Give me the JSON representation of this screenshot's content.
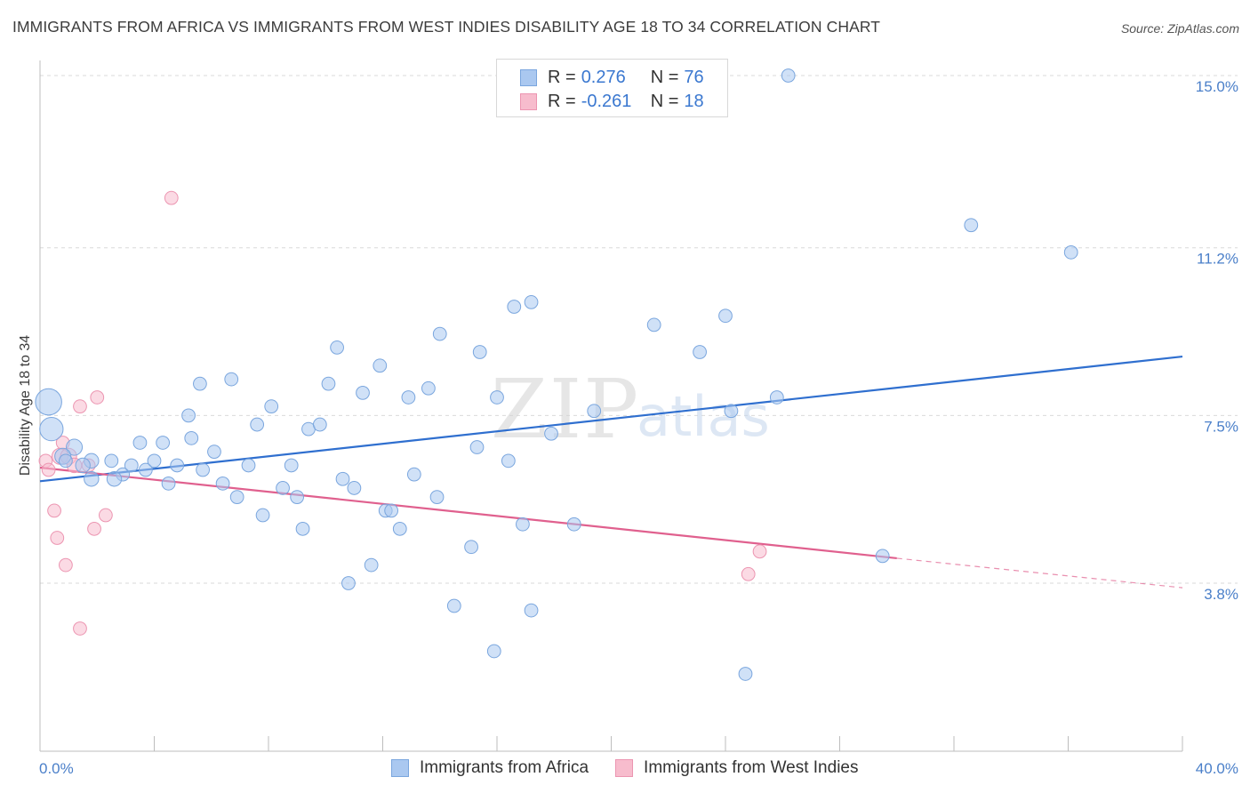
{
  "title": "IMMIGRANTS FROM AFRICA VS IMMIGRANTS FROM WEST INDIES DISABILITY AGE 18 TO 34 CORRELATION CHART",
  "source": "Source: ZipAtlas.com",
  "watermark": {
    "zip": "ZIP",
    "atlas": "atlas"
  },
  "legend_top": {
    "rows": [
      {
        "r_label": "R =",
        "r_value": "0.276",
        "n_label": "N =",
        "n_value": "76"
      },
      {
        "r_label": "R =",
        "r_value": "-0.261",
        "n_label": "N =",
        "n_value": "18"
      }
    ]
  },
  "legend_bottom": [
    "Immigrants from Africa",
    "Immigrants from West Indies"
  ],
  "colors": {
    "africa_fill": "#aac8f0",
    "africa_stroke": "#7aa6de",
    "africa_line": "#2f6fcf",
    "westindies_fill": "#f7bccd",
    "westindies_stroke": "#ec95b1",
    "westindies_line": "#e0608e",
    "tick_text": "#4a7fc9",
    "grid": "#d9d9d9"
  },
  "chart_data": {
    "type": "scatter",
    "title": "IMMIGRANTS FROM AFRICA VS IMMIGRANTS FROM WEST INDIES DISABILITY AGE 18 TO 34 CORRELATION CHART",
    "xlabel": "",
    "ylabel": "Disability Age 18 to 34",
    "x_tick_labels": [
      "0.0%",
      "40.0%"
    ],
    "y_tick_labels": [
      "15.0%",
      "11.2%",
      "7.5%",
      "3.8%"
    ],
    "y_ticks": [
      15.0,
      11.2,
      7.5,
      3.8
    ],
    "xlim": [
      0,
      40
    ],
    "ylim": [
      0,
      15.5
    ],
    "grid": true,
    "legend": "bottom",
    "series": [
      {
        "name": "Immigrants from Africa",
        "r": 0.276,
        "n": 76,
        "trend": {
          "x": [
            0,
            40
          ],
          "y": [
            6.05,
            8.8
          ]
        },
        "points": [
          [
            0.3,
            7.8,
            18
          ],
          [
            0.4,
            7.2,
            16
          ],
          [
            1.2,
            6.8,
            11
          ],
          [
            0.8,
            6.6,
            11
          ],
          [
            1.8,
            6.5,
            10
          ],
          [
            1.5,
            6.4,
            10
          ],
          [
            2.5,
            6.5,
            9
          ],
          [
            2.9,
            6.2,
            9
          ],
          [
            1.8,
            6.1,
            10
          ],
          [
            3.2,
            6.4,
            9
          ],
          [
            3.7,
            6.3,
            9
          ],
          [
            3.5,
            6.9,
            9
          ],
          [
            4.0,
            6.5,
            9
          ],
          [
            4.3,
            6.9,
            9
          ],
          [
            4.5,
            6.0,
            9
          ],
          [
            4.8,
            6.4,
            9
          ],
          [
            5.2,
            7.5,
            9
          ],
          [
            5.6,
            8.2,
            9
          ],
          [
            5.3,
            7.0,
            9
          ],
          [
            5.7,
            6.3,
            9
          ],
          [
            6.1,
            6.7,
            9
          ],
          [
            6.4,
            6.0,
            9
          ],
          [
            6.7,
            8.3,
            9
          ],
          [
            6.9,
            5.7,
            9
          ],
          [
            7.3,
            6.4,
            9
          ],
          [
            7.6,
            7.3,
            9
          ],
          [
            7.8,
            5.3,
            9
          ],
          [
            8.1,
            7.7,
            9
          ],
          [
            8.5,
            5.9,
            9
          ],
          [
            8.8,
            6.4,
            9
          ],
          [
            9.0,
            5.7,
            9
          ],
          [
            9.2,
            5.0,
            9
          ],
          [
            9.4,
            7.2,
            9
          ],
          [
            9.8,
            7.3,
            9
          ],
          [
            10.1,
            8.2,
            9
          ],
          [
            10.4,
            9.0,
            9
          ],
          [
            10.6,
            6.1,
            9
          ],
          [
            10.8,
            3.8,
            9
          ],
          [
            11.0,
            5.9,
            9
          ],
          [
            11.3,
            8.0,
            9
          ],
          [
            11.6,
            4.2,
            9
          ],
          [
            11.9,
            8.6,
            9
          ],
          [
            12.1,
            5.4,
            9
          ],
          [
            12.3,
            5.4,
            9
          ],
          [
            12.6,
            5.0,
            9
          ],
          [
            12.9,
            7.9,
            9
          ],
          [
            13.1,
            6.2,
            9
          ],
          [
            13.6,
            8.1,
            9
          ],
          [
            13.9,
            5.7,
            9
          ],
          [
            14.0,
            9.3,
            9
          ],
          [
            14.5,
            3.3,
            9
          ],
          [
            15.1,
            4.6,
            9
          ],
          [
            15.3,
            6.8,
            9
          ],
          [
            15.4,
            8.9,
            9
          ],
          [
            15.9,
            2.3,
            9
          ],
          [
            16.0,
            7.9,
            9
          ],
          [
            16.4,
            6.5,
            9
          ],
          [
            16.6,
            9.9,
            9
          ],
          [
            16.9,
            5.1,
            9
          ],
          [
            17.2,
            10.0,
            9
          ],
          [
            17.2,
            3.2,
            9
          ],
          [
            17.9,
            7.1,
            9
          ],
          [
            18.7,
            5.1,
            9
          ],
          [
            19.4,
            7.6,
            9
          ],
          [
            21.5,
            9.5,
            9
          ],
          [
            23.1,
            8.9,
            9
          ],
          [
            24.0,
            9.7,
            9
          ],
          [
            24.2,
            7.6,
            9
          ],
          [
            24.7,
            1.8,
            9
          ],
          [
            25.8,
            7.9,
            9
          ],
          [
            26.2,
            15.0,
            9
          ],
          [
            29.5,
            4.4,
            9
          ],
          [
            32.6,
            11.7,
            9
          ],
          [
            36.1,
            11.1,
            9
          ],
          [
            2.6,
            6.1,
            10
          ],
          [
            0.9,
            6.5,
            9
          ]
        ]
      },
      {
        "name": "Immigrants from West Indies",
        "r": -0.261,
        "n": 18,
        "trend": {
          "x": [
            0,
            30
          ],
          "y": [
            6.35,
            4.35
          ]
        },
        "trend_dashed": {
          "x": [
            30,
            40
          ],
          "y": [
            4.35,
            3.7
          ]
        },
        "points": [
          [
            0.2,
            6.5,
            9
          ],
          [
            0.3,
            6.3,
            9
          ],
          [
            0.5,
            5.4,
            9
          ],
          [
            0.6,
            4.8,
            9
          ],
          [
            0.7,
            6.6,
            11
          ],
          [
            0.8,
            6.9,
            9
          ],
          [
            0.9,
            4.2,
            9
          ],
          [
            1.0,
            6.6,
            11
          ],
          [
            1.2,
            6.4,
            10
          ],
          [
            1.4,
            2.8,
            9
          ],
          [
            1.4,
            7.7,
            9
          ],
          [
            1.7,
            6.4,
            9
          ],
          [
            1.9,
            5.0,
            9
          ],
          [
            2.0,
            7.9,
            9
          ],
          [
            2.3,
            5.3,
            9
          ],
          [
            4.6,
            12.3,
            9
          ],
          [
            24.8,
            4.0,
            9
          ],
          [
            25.2,
            4.5,
            9
          ]
        ]
      }
    ]
  }
}
